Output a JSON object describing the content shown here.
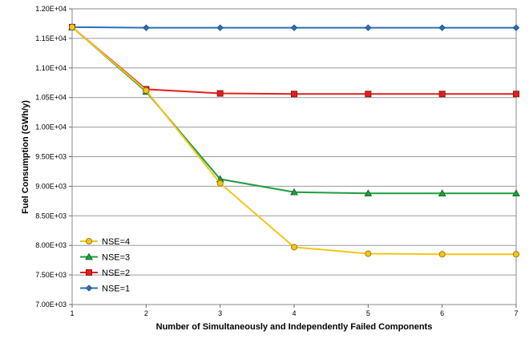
{
  "chart_data": {
    "type": "line",
    "x": [
      1,
      2,
      3,
      4,
      5,
      6,
      7
    ],
    "xlabel": "Number of Simultaneously and Independently Failed Components",
    "ylabel": "Fuel Consumption (GWh/y)",
    "xlim": [
      1,
      7
    ],
    "ylim": [
      7000,
      12000
    ],
    "y_ticks": [
      7000,
      7500,
      8000,
      8500,
      9000,
      9500,
      10000,
      10500,
      11000,
      11500,
      12000
    ],
    "y_tick_labels": [
      "7.00E+03",
      "7.50E+03",
      "8.00E+03",
      "8.50E+03",
      "9.00E+03",
      "9.50E+03",
      "1.00E+04",
      "1.05E+04",
      "1.10E+04",
      "1.15E+04",
      "1.20E+04"
    ],
    "x_tick_labels": [
      "1",
      "2",
      "3",
      "4",
      "5",
      "6",
      "7"
    ],
    "grid": "horizontal",
    "legend_position": "bottom-left",
    "series": [
      {
        "name": "NSE=4",
        "color": "#f5c518",
        "marker": "circle",
        "values": [
          11690,
          10620,
          9050,
          7970,
          7860,
          7850,
          7850
        ]
      },
      {
        "name": "NSE=3",
        "color": "#1e9e3e",
        "marker": "triangle",
        "values": [
          11690,
          10600,
          9120,
          8900,
          8880,
          8880,
          8880
        ]
      },
      {
        "name": "NSE=2",
        "color": "#e0201b",
        "marker": "square",
        "values": [
          11690,
          10640,
          10570,
          10560,
          10560,
          10560,
          10560
        ]
      },
      {
        "name": "NSE=1",
        "color": "#2e6fb5",
        "marker": "diamond",
        "values": [
          11690,
          11680,
          11680,
          11680,
          11680,
          11680,
          11680
        ]
      }
    ]
  }
}
